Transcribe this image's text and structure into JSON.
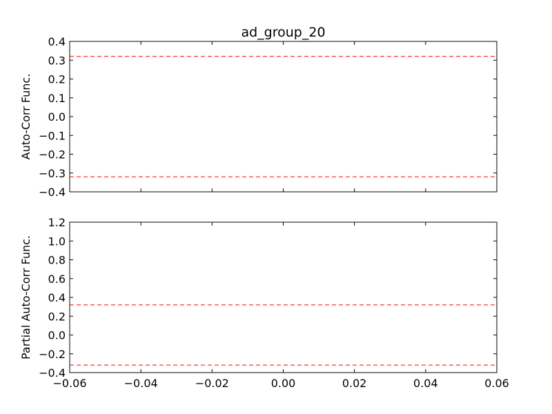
{
  "chart_data": [
    {
      "type": "line",
      "title": "ad_group_20",
      "ylabel": "Auto-Corr Func.",
      "xlim": [
        -0.06,
        0.06
      ],
      "ylim": [
        -0.4,
        0.4
      ],
      "yticks": [
        "0.4",
        "0.3",
        "0.2",
        "0.1",
        "0.0",
        "−0.1",
        "−0.2",
        "−0.3",
        "−0.4"
      ],
      "xtick_labels_shown": false,
      "grid": false,
      "series": [],
      "reference_lines": [
        {
          "y": 0.32,
          "style": "dashed",
          "color": "#ff0000"
        },
        {
          "y": -0.32,
          "style": "dashed",
          "color": "#ff0000"
        }
      ]
    },
    {
      "type": "line",
      "ylabel": "Partial Auto-Corr Func.",
      "xlim": [
        -0.06,
        0.06
      ],
      "ylim": [
        -0.4,
        1.2
      ],
      "yticks": [
        "1.2",
        "1.0",
        "0.8",
        "0.6",
        "0.4",
        "0.2",
        "0.0",
        "−0.2",
        "−0.4"
      ],
      "xticks": [
        "−0.06",
        "−0.04",
        "−0.02",
        "0.00",
        "0.02",
        "0.04",
        "0.06"
      ],
      "grid": false,
      "series": [],
      "reference_lines": [
        {
          "y": 0.32,
          "style": "dashed",
          "color": "#ff0000"
        },
        {
          "y": -0.32,
          "style": "dashed",
          "color": "#ff0000"
        }
      ]
    }
  ]
}
